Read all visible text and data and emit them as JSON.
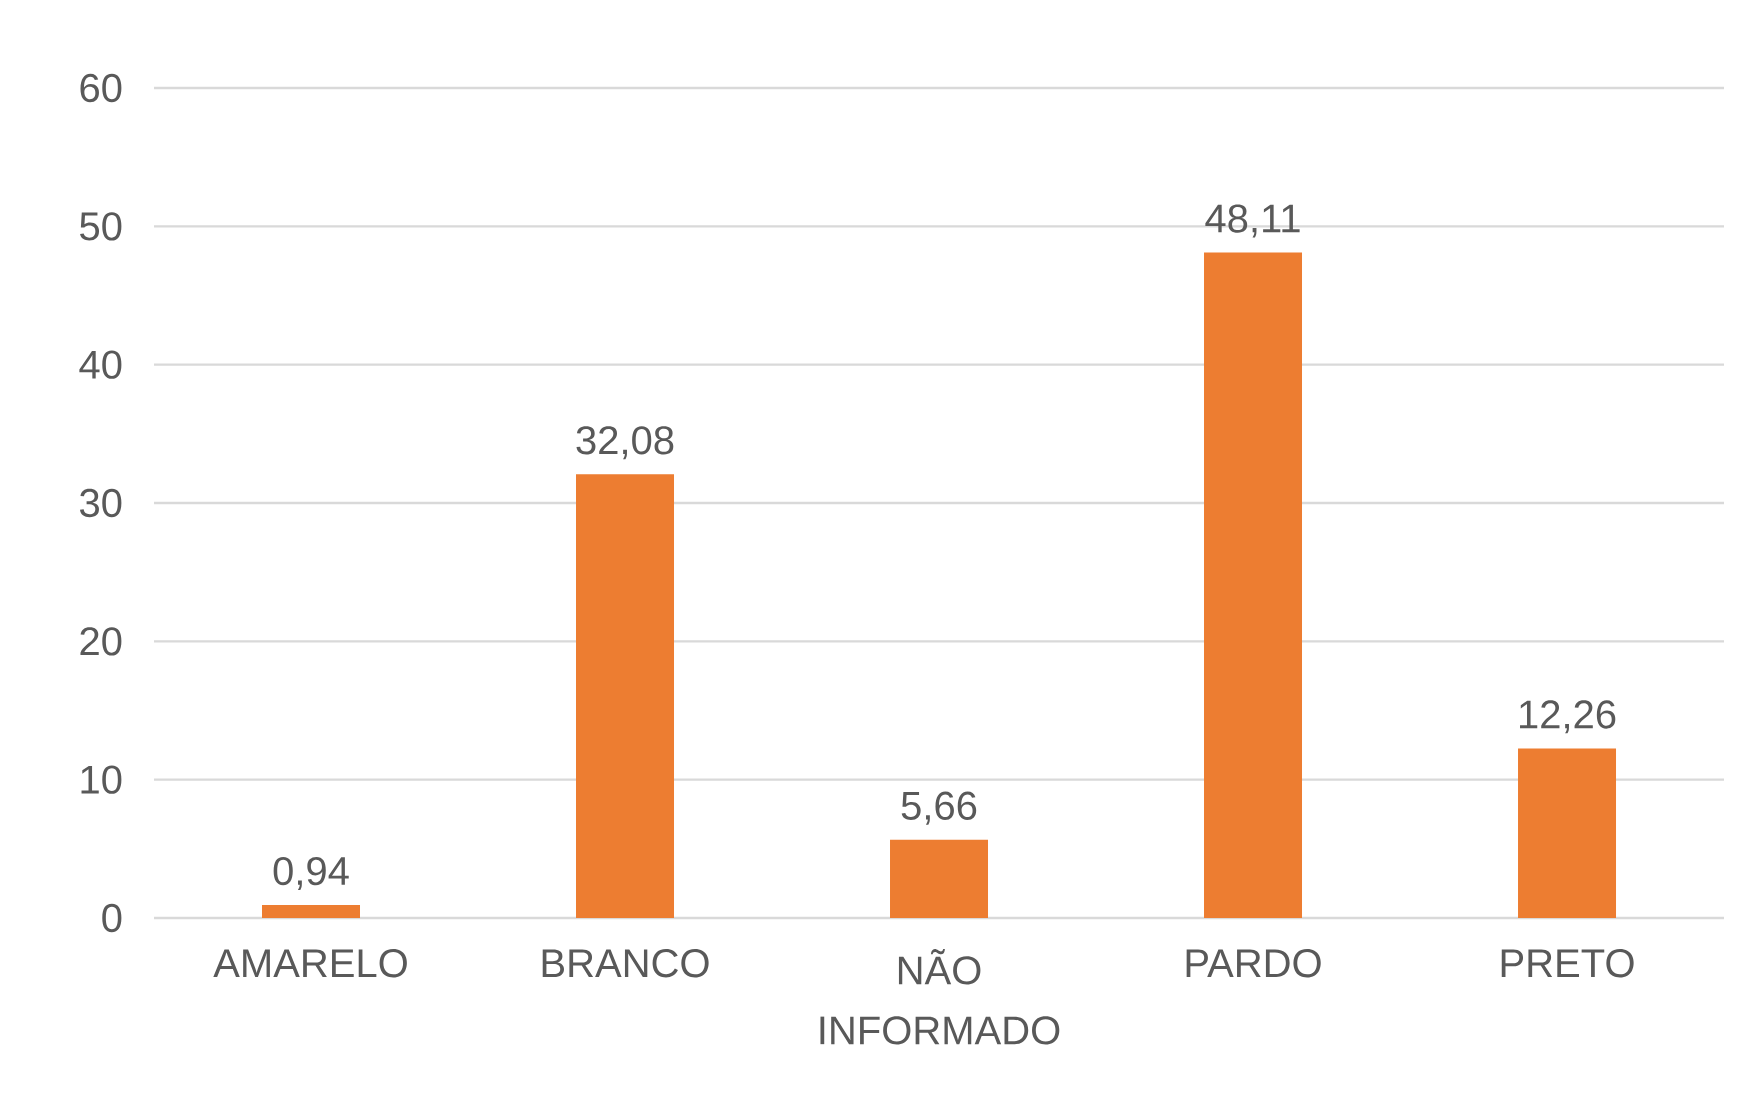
{
  "chart_data": {
    "type": "bar",
    "categories": [
      "AMARELO",
      "BRANCO",
      "NÃO INFORMADO",
      "PARDO",
      "PRETO"
    ],
    "values": [
      0.94,
      32.08,
      5.66,
      48.11,
      12.26
    ],
    "value_labels": [
      "0,94",
      "32,08",
      "5,66",
      "48,11",
      "12,26"
    ],
    "color": "#ed7d31",
    "ylim": [
      0,
      60
    ],
    "yticks": [
      0,
      10,
      20,
      30,
      40,
      50,
      60
    ],
    "grid": "y"
  }
}
